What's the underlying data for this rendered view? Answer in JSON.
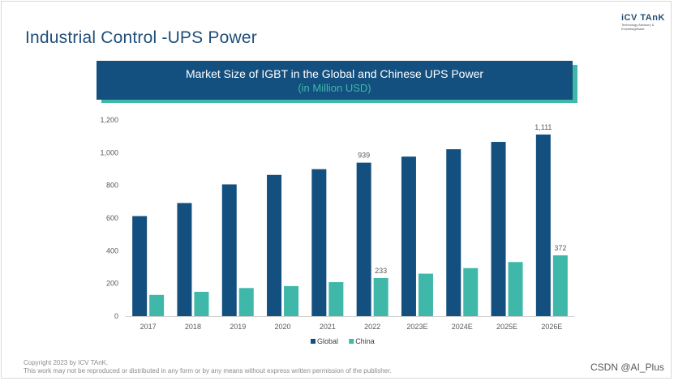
{
  "page": {
    "title": "Industrial Control -UPS Power",
    "logo_main": "iCV TAnK",
    "logo_sub": "Technology Advisory & Knowledgebase"
  },
  "banner": {
    "title": "Market Size of IGBT in the Global and Chinese UPS Power",
    "subtitle": "(in Million USD)"
  },
  "colors": {
    "global": "#14507f",
    "china": "#3fb8a9"
  },
  "chart_data": {
    "type": "bar",
    "title": "Market Size of IGBT in the Global and Chinese UPS Power",
    "subtitle": "(in Million USD)",
    "xlabel": "",
    "ylabel": "",
    "ylim": [
      0,
      1200
    ],
    "yticks": [
      0,
      200,
      400,
      600,
      800,
      1000,
      1200
    ],
    "ytick_labels": [
      "0",
      "200",
      "400",
      "600",
      "800",
      "1,000",
      "1,200"
    ],
    "grid": false,
    "legend_position": "bottom",
    "categories": [
      "2017",
      "2018",
      "2019",
      "2020",
      "2021",
      "2022",
      "2023E",
      "2024E",
      "2025E",
      "2026E"
    ],
    "series": [
      {
        "name": "Global",
        "values": [
          612,
          692,
          806,
          864,
          899,
          939,
          976,
          1021,
          1066,
          1111
        ]
      },
      {
        "name": "China",
        "values": [
          130,
          149,
          172,
          184,
          208,
          233,
          260,
          294,
          331,
          372
        ]
      }
    ],
    "annotations": [
      {
        "series": "Global",
        "category": "2022",
        "text": "939"
      },
      {
        "series": "Global",
        "category": "2026E",
        "text": "1,111"
      },
      {
        "series": "China",
        "category": "2022",
        "text": "233"
      },
      {
        "series": "China",
        "category": "2026E",
        "text": "372"
      }
    ]
  },
  "footer": {
    "copyright_line1": "Copyright  2023 by ICV TAnK.",
    "copyright_line2": "This work may not be reproduced or distributed in any form or by any means without express written permission of the publisher.",
    "watermark": "CSDN @AI_Plus"
  }
}
